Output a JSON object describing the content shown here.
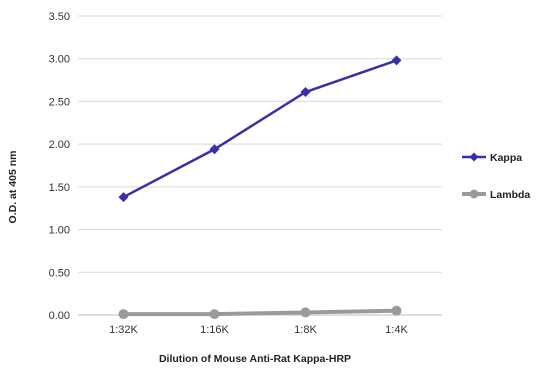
{
  "chart_data": {
    "type": "line",
    "categories": [
      "1:32K",
      "1:16K",
      "1:8K",
      "1:4K"
    ],
    "series": [
      {
        "name": "Kappa",
        "values": [
          1.38,
          1.94,
          2.61,
          2.98
        ],
        "color": "#3a2fa8",
        "marker": "diamond"
      },
      {
        "name": "Lambda",
        "values": [
          0.01,
          0.01,
          0.03,
          0.05
        ],
        "color": "#9a9a9a",
        "marker": "circle"
      }
    ],
    "xlabel": "Dilution of Mouse Anti-Rat Kappa-HRP",
    "ylabel": "O.D. at 405 nm",
    "ylim": [
      0,
      3.5
    ],
    "yticks": [
      "0.00",
      "0.50",
      "1.00",
      "1.50",
      "2.00",
      "2.50",
      "3.00",
      "3.50"
    ],
    "grid": true,
    "legend": "right"
  }
}
